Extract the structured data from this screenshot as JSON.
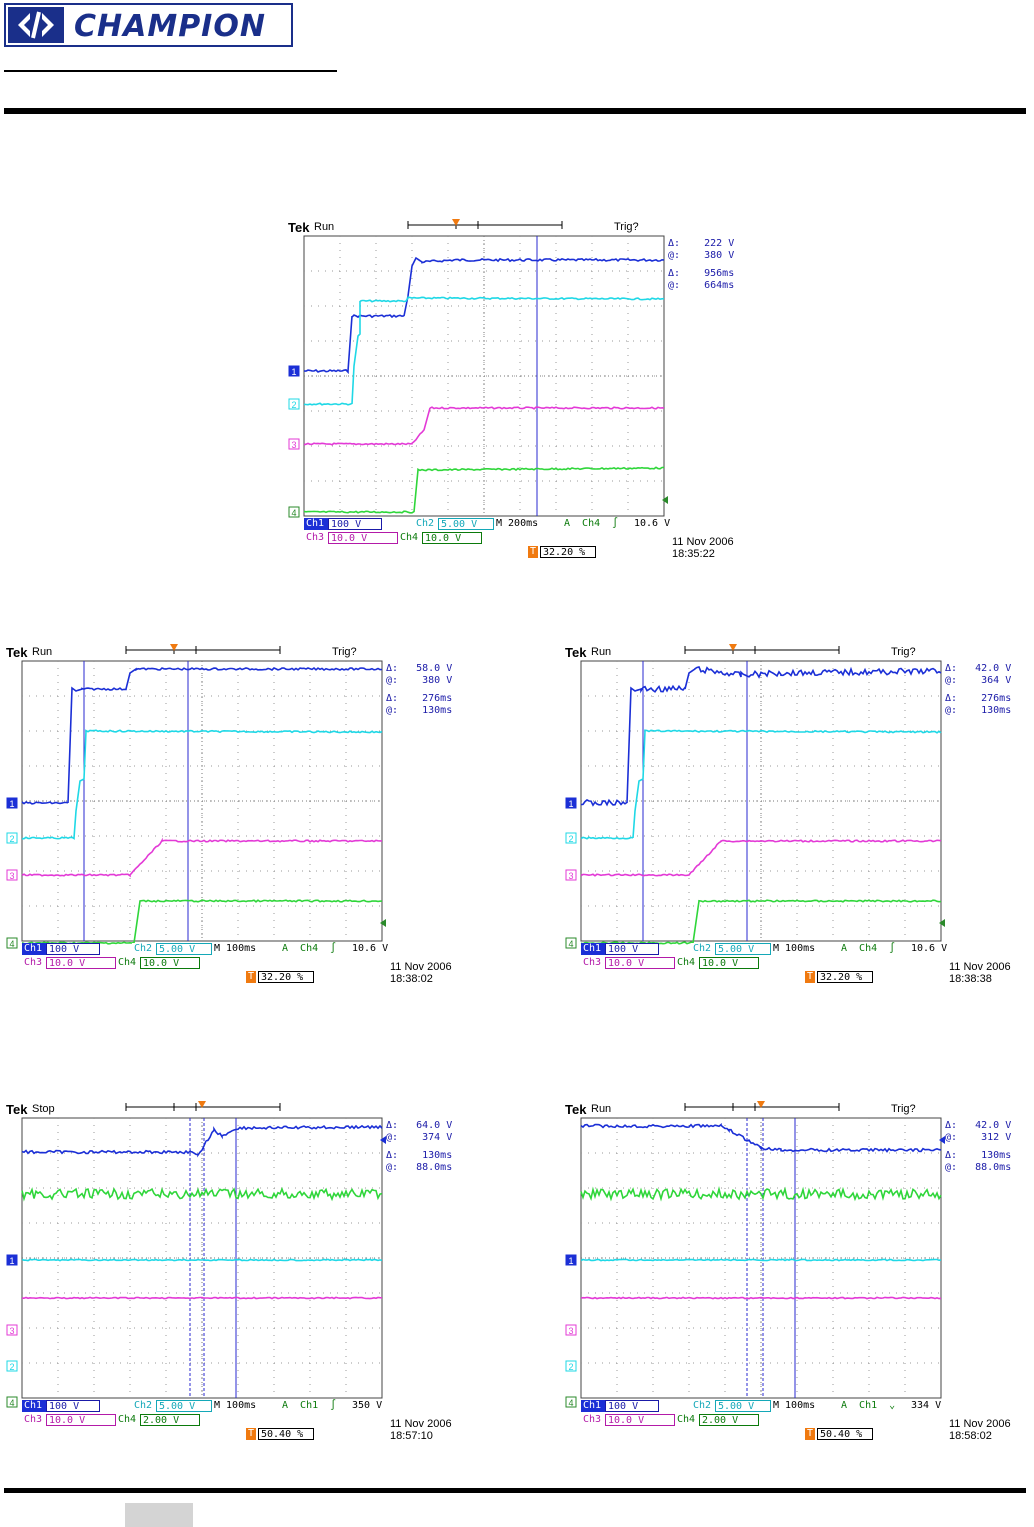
{
  "header": {
    "logo_text": "CHAMPION"
  },
  "colors": {
    "ch1": "#1b2fd6",
    "ch2": "#1fd8e6",
    "ch3": "#e33ad6",
    "ch4": "#2fd63a",
    "trigger": "#f07a10",
    "brand": "#1a2f8a"
  },
  "scopes": [
    {
      "brand": "Tek",
      "state": "Run",
      "trig": "Trig?",
      "readouts": [
        "Δ:    222 V",
        "@:    380 V",
        "Δ:    956ms",
        "@:    664ms"
      ],
      "ch_markers": [
        "1",
        "2",
        "3",
        "4"
      ],
      "bottom": {
        "ch1": "Ch1",
        "ch1_scale": "100 V",
        "ch2": "Ch2",
        "ch2_scale": "5.00 V",
        "timebase": "M 200ms",
        "trig_src": "A  Ch4  ∫",
        "trig_level": "10.6 V",
        "ch3": "Ch3",
        "ch3_scale": "10.0 V",
        "ch4": "Ch4",
        "ch4_scale": "10.0 V",
        "trig_pct": "32.20 %"
      },
      "date": "11 Nov 2006",
      "time": "18:35:22"
    },
    {
      "brand": "Tek",
      "state": "Run",
      "trig": "Trig?",
      "readouts": [
        "Δ:   58.0 V",
        "@:    380 V",
        "Δ:    276ms",
        "@:    130ms"
      ],
      "ch_markers": [
        "1",
        "2",
        "3",
        "4"
      ],
      "bottom": {
        "ch1": "Ch1",
        "ch1_scale": "100 V",
        "ch2": "Ch2",
        "ch2_scale": "5.00 V",
        "timebase": "M 100ms",
        "trig_src": "A  Ch4  ∫",
        "trig_level": "10.6 V",
        "ch3": "Ch3",
        "ch3_scale": "10.0 V",
        "ch4": "Ch4",
        "ch4_scale": "10.0 V",
        "trig_pct": "32.20 %"
      },
      "date": "11 Nov 2006",
      "time": "18:38:02"
    },
    {
      "brand": "Tek",
      "state": "Run",
      "trig": "Trig?",
      "readouts": [
        "Δ:   42.0 V",
        "@:    364 V",
        "Δ:    276ms",
        "@:    130ms"
      ],
      "ch_markers": [
        "1",
        "2",
        "3",
        "4"
      ],
      "bottom": {
        "ch1": "Ch1",
        "ch1_scale": "100 V",
        "ch2": "Ch2",
        "ch2_scale": "5.00 V",
        "timebase": "M 100ms",
        "trig_src": "A  Ch4  ∫",
        "trig_level": "10.6 V",
        "ch3": "Ch3",
        "ch3_scale": "10.0 V",
        "ch4": "Ch4",
        "ch4_scale": "10.0 V",
        "trig_pct": "32.20 %"
      },
      "date": "11 Nov 2006",
      "time": "18:38:38"
    },
    {
      "brand": "Tek",
      "state": "Stop",
      "trig": "",
      "readouts": [
        "Δ:   64.0 V",
        "@:    374 V",
        "Δ:    130ms",
        "@:   88.0ms"
      ],
      "ch_markers": [
        "1",
        "3",
        "2",
        "4"
      ],
      "bottom": {
        "ch1": "Ch1",
        "ch1_scale": "100 V",
        "ch2": "Ch2",
        "ch2_scale": "5.00 V",
        "timebase": "M 100ms",
        "trig_src": "A  Ch1  ∫",
        "trig_level": "350 V",
        "ch3": "Ch3",
        "ch3_scale": "10.0 V",
        "ch4": "Ch4",
        "ch4_scale": "2.00 V",
        "trig_pct": "50.40 %"
      },
      "date": "11 Nov 2006",
      "time": "18:57:10"
    },
    {
      "brand": "Tek",
      "state": "Run",
      "trig": "Trig?",
      "readouts": [
        "Δ:   42.0 V",
        "@:    312 V",
        "Δ:    130ms",
        "@:   88.0ms"
      ],
      "ch_markers": [
        "1",
        "3",
        "2",
        "4"
      ],
      "bottom": {
        "ch1": "Ch1",
        "ch1_scale": "100 V",
        "ch2": "Ch2",
        "ch2_scale": "5.00 V",
        "timebase": "M 100ms",
        "trig_src": "A  Ch1  ⌄",
        "trig_level": "334 V",
        "ch3": "Ch3",
        "ch3_scale": "10.0 V",
        "ch4": "Ch4",
        "ch4_scale": "2.00 V",
        "trig_pct": "50.40 %"
      },
      "date": "11 Nov 2006",
      "time": "18:58:02"
    }
  ]
}
